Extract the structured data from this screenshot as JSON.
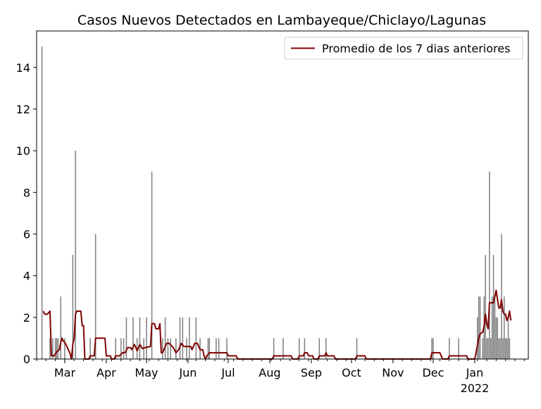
{
  "chart_data": {
    "type": "bar",
    "title": "Casos Nuevos Detectados en Lambayeque/Chiclayo/Lagunas",
    "xlabel": "",
    "ylabel": "",
    "x_range": [
      "2021-02-08",
      "2022-02-10"
    ],
    "ylim": [
      0,
      15.75
    ],
    "grid": false,
    "legend_position": "top-right",
    "x_ticks": [
      {
        "date": "2021-03-01",
        "label": "Mar"
      },
      {
        "date": "2021-04-01",
        "label": "Apr"
      },
      {
        "date": "2021-05-01",
        "label": "May"
      },
      {
        "date": "2021-06-01",
        "label": "Jun"
      },
      {
        "date": "2021-07-01",
        "label": "Jul"
      },
      {
        "date": "2021-08-01",
        "label": "Aug"
      },
      {
        "date": "2021-09-01",
        "label": "Sep"
      },
      {
        "date": "2021-10-01",
        "label": "Oct"
      },
      {
        "date": "2021-11-01",
        "label": "Nov"
      },
      {
        "date": "2021-12-01",
        "label": "Dec"
      },
      {
        "date": "2022-01-01",
        "label": "Jan",
        "sublabel": "2022"
      }
    ],
    "y_ticks": [
      0,
      2,
      4,
      6,
      8,
      10,
      12,
      14
    ],
    "bar_color": "#808080",
    "line_color": "#800000",
    "series": [
      {
        "type": "bar",
        "points": [
          [
            "2021-02-12",
            15
          ],
          [
            "2021-02-18",
            1
          ],
          [
            "2021-02-20",
            1
          ],
          [
            "2021-02-22",
            1
          ],
          [
            "2021-02-23",
            1
          ],
          [
            "2021-02-24",
            1
          ],
          [
            "2021-02-26",
            3
          ],
          [
            "2021-03-01",
            1
          ],
          [
            "2021-03-07",
            5
          ],
          [
            "2021-03-09",
            10
          ],
          [
            "2021-03-20",
            1
          ],
          [
            "2021-03-24",
            6
          ],
          [
            "2021-04-08",
            1
          ],
          [
            "2021-04-12",
            1
          ],
          [
            "2021-04-14",
            1
          ],
          [
            "2021-04-16",
            2
          ],
          [
            "2021-04-21",
            2
          ],
          [
            "2021-04-24",
            1
          ],
          [
            "2021-04-26",
            2
          ],
          [
            "2021-04-29",
            1
          ],
          [
            "2021-05-01",
            2
          ],
          [
            "2021-05-05",
            9
          ],
          [
            "2021-05-13",
            1
          ],
          [
            "2021-05-15",
            2
          ],
          [
            "2021-05-17",
            1
          ],
          [
            "2021-05-19",
            1
          ],
          [
            "2021-05-23",
            1
          ],
          [
            "2021-05-26",
            2
          ],
          [
            "2021-05-28",
            2
          ],
          [
            "2021-05-31",
            1
          ],
          [
            "2021-06-02",
            2
          ],
          [
            "2021-06-07",
            2
          ],
          [
            "2021-06-10",
            1
          ],
          [
            "2021-06-16",
            1
          ],
          [
            "2021-06-17",
            1
          ],
          [
            "2021-06-22",
            1
          ],
          [
            "2021-06-24",
            1
          ],
          [
            "2021-06-30",
            1
          ],
          [
            "2021-08-04",
            1
          ],
          [
            "2021-08-11",
            1
          ],
          [
            "2021-08-23",
            1
          ],
          [
            "2021-08-27",
            1
          ],
          [
            "2021-09-07",
            1
          ],
          [
            "2021-09-12",
            1
          ],
          [
            "2021-10-05",
            1
          ],
          [
            "2021-11-30",
            1
          ],
          [
            "2021-12-01",
            1
          ],
          [
            "2021-12-13",
            1
          ],
          [
            "2021-12-20",
            1
          ],
          [
            "2022-01-03",
            2
          ],
          [
            "2022-01-04",
            3
          ],
          [
            "2022-01-05",
            3
          ],
          [
            "2022-01-07",
            1
          ],
          [
            "2022-01-08",
            3
          ],
          [
            "2022-01-09",
            5
          ],
          [
            "2022-01-10",
            1
          ],
          [
            "2022-01-11",
            1
          ],
          [
            "2022-01-12",
            9
          ],
          [
            "2022-01-13",
            1
          ],
          [
            "2022-01-14",
            3
          ],
          [
            "2022-01-15",
            5
          ],
          [
            "2022-01-16",
            3
          ],
          [
            "2022-01-17",
            2
          ],
          [
            "2022-01-18",
            2
          ],
          [
            "2022-01-19",
            1
          ],
          [
            "2022-01-20",
            1
          ],
          [
            "2022-01-21",
            6
          ],
          [
            "2022-01-22",
            1
          ],
          [
            "2022-01-23",
            3
          ],
          [
            "2022-01-24",
            1
          ],
          [
            "2022-01-25",
            1
          ],
          [
            "2022-01-26",
            2
          ],
          [
            "2022-01-27",
            1
          ]
        ]
      },
      {
        "type": "line",
        "name": "Promedio de los 7 dias anteriores",
        "points": [
          [
            "2021-02-13",
            2.3
          ],
          [
            "2021-02-14",
            2.15
          ],
          [
            "2021-02-16",
            2.15
          ],
          [
            "2021-02-18",
            2.3
          ],
          [
            "2021-02-19",
            0.15
          ],
          [
            "2021-02-21",
            0.15
          ],
          [
            "2021-02-23",
            0.35
          ],
          [
            "2021-02-25",
            0.45
          ],
          [
            "2021-02-26",
            0.8
          ],
          [
            "2021-02-27",
            1.0
          ],
          [
            "2021-02-28",
            0.85
          ],
          [
            "2021-03-01",
            0.8
          ],
          [
            "2021-03-03",
            0.55
          ],
          [
            "2021-03-05",
            0.25
          ],
          [
            "2021-03-06",
            0.0
          ],
          [
            "2021-03-07",
            0.7
          ],
          [
            "2021-03-08",
            1.0
          ],
          [
            "2021-03-09",
            2.15
          ],
          [
            "2021-03-10",
            2.3
          ],
          [
            "2021-03-13",
            2.3
          ],
          [
            "2021-03-14",
            1.6
          ],
          [
            "2021-03-15",
            1.6
          ],
          [
            "2021-03-16",
            0.0
          ],
          [
            "2021-03-19",
            0.0
          ],
          [
            "2021-03-20",
            0.15
          ],
          [
            "2021-03-23",
            0.15
          ],
          [
            "2021-03-24",
            1.0
          ],
          [
            "2021-03-31",
            1.0
          ],
          [
            "2021-04-01",
            0.15
          ],
          [
            "2021-04-04",
            0.15
          ],
          [
            "2021-04-05",
            0.0
          ],
          [
            "2021-04-07",
            0.0
          ],
          [
            "2021-04-08",
            0.15
          ],
          [
            "2021-04-11",
            0.15
          ],
          [
            "2021-04-13",
            0.3
          ],
          [
            "2021-04-15",
            0.3
          ],
          [
            "2021-04-17",
            0.55
          ],
          [
            "2021-04-19",
            0.55
          ],
          [
            "2021-04-20",
            0.45
          ],
          [
            "2021-04-22",
            0.7
          ],
          [
            "2021-04-24",
            0.4
          ],
          [
            "2021-04-26",
            0.7
          ],
          [
            "2021-04-28",
            0.5
          ],
          [
            "2021-04-30",
            0.55
          ],
          [
            "2021-05-04",
            0.6
          ],
          [
            "2021-05-05",
            1.7
          ],
          [
            "2021-05-07",
            1.7
          ],
          [
            "2021-05-08",
            1.45
          ],
          [
            "2021-05-10",
            1.45
          ],
          [
            "2021-05-11",
            1.7
          ],
          [
            "2021-05-12",
            0.3
          ],
          [
            "2021-05-13",
            0.3
          ],
          [
            "2021-05-15",
            0.6
          ],
          [
            "2021-05-16",
            0.75
          ],
          [
            "2021-05-18",
            0.75
          ],
          [
            "2021-05-21",
            0.55
          ],
          [
            "2021-05-23",
            0.3
          ],
          [
            "2021-05-25",
            0.45
          ],
          [
            "2021-05-27",
            0.75
          ],
          [
            "2021-05-29",
            0.6
          ],
          [
            "2021-06-03",
            0.6
          ],
          [
            "2021-06-04",
            0.45
          ],
          [
            "2021-06-06",
            0.75
          ],
          [
            "2021-06-08",
            0.75
          ],
          [
            "2021-06-10",
            0.45
          ],
          [
            "2021-06-12",
            0.45
          ],
          [
            "2021-06-13",
            0.15
          ],
          [
            "2021-06-14",
            0.0
          ],
          [
            "2021-06-15",
            0.15
          ],
          [
            "2021-06-17",
            0.3
          ],
          [
            "2021-06-30",
            0.3
          ],
          [
            "2021-07-01",
            0.15
          ],
          [
            "2021-07-07",
            0.15
          ],
          [
            "2021-07-08",
            0.0
          ],
          [
            "2021-08-03",
            0.0
          ],
          [
            "2021-08-04",
            0.15
          ],
          [
            "2021-08-17",
            0.15
          ],
          [
            "2021-08-18",
            0.0
          ],
          [
            "2021-08-22",
            0.0
          ],
          [
            "2021-08-23",
            0.15
          ],
          [
            "2021-08-26",
            0.15
          ],
          [
            "2021-08-27",
            0.3
          ],
          [
            "2021-08-29",
            0.3
          ],
          [
            "2021-08-30",
            0.15
          ],
          [
            "2021-09-02",
            0.15
          ],
          [
            "2021-09-03",
            0.0
          ],
          [
            "2021-09-06",
            0.0
          ],
          [
            "2021-09-07",
            0.15
          ],
          [
            "2021-09-11",
            0.15
          ],
          [
            "2021-09-12",
            0.3
          ],
          [
            "2021-09-13",
            0.15
          ],
          [
            "2021-09-18",
            0.15
          ],
          [
            "2021-09-19",
            0.0
          ],
          [
            "2021-10-04",
            0.0
          ],
          [
            "2021-10-05",
            0.15
          ],
          [
            "2021-10-11",
            0.15
          ],
          [
            "2021-10-12",
            0.0
          ],
          [
            "2021-11-29",
            0.0
          ],
          [
            "2021-11-30",
            0.3
          ],
          [
            "2021-12-06",
            0.3
          ],
          [
            "2021-12-07",
            0.15
          ],
          [
            "2021-12-08",
            0.0
          ],
          [
            "2021-12-12",
            0.0
          ],
          [
            "2021-12-13",
            0.15
          ],
          [
            "2021-12-26",
            0.15
          ],
          [
            "2021-12-27",
            0.0
          ],
          [
            "2022-01-01",
            0.0
          ],
          [
            "2022-01-02",
            0.3
          ],
          [
            "2022-01-04",
            1.0
          ],
          [
            "2022-01-05",
            1.2
          ],
          [
            "2022-01-07",
            1.3
          ],
          [
            "2022-01-08",
            1.6
          ],
          [
            "2022-01-09",
            2.15
          ],
          [
            "2022-01-10",
            1.7
          ],
          [
            "2022-01-11",
            1.45
          ],
          [
            "2022-01-12",
            2.7
          ],
          [
            "2022-01-15",
            2.7
          ],
          [
            "2022-01-16",
            3.0
          ],
          [
            "2022-01-17",
            3.3
          ],
          [
            "2022-01-18",
            2.85
          ],
          [
            "2022-01-19",
            2.45
          ],
          [
            "2022-01-20",
            2.45
          ],
          [
            "2022-01-21",
            2.85
          ],
          [
            "2022-01-22",
            2.3
          ],
          [
            "2022-01-23",
            2.15
          ],
          [
            "2022-01-24",
            2.15
          ],
          [
            "2022-01-25",
            1.85
          ],
          [
            "2022-01-26",
            2.0
          ],
          [
            "2022-01-27",
            2.3
          ],
          [
            "2022-01-28",
            1.85
          ]
        ]
      }
    ]
  }
}
